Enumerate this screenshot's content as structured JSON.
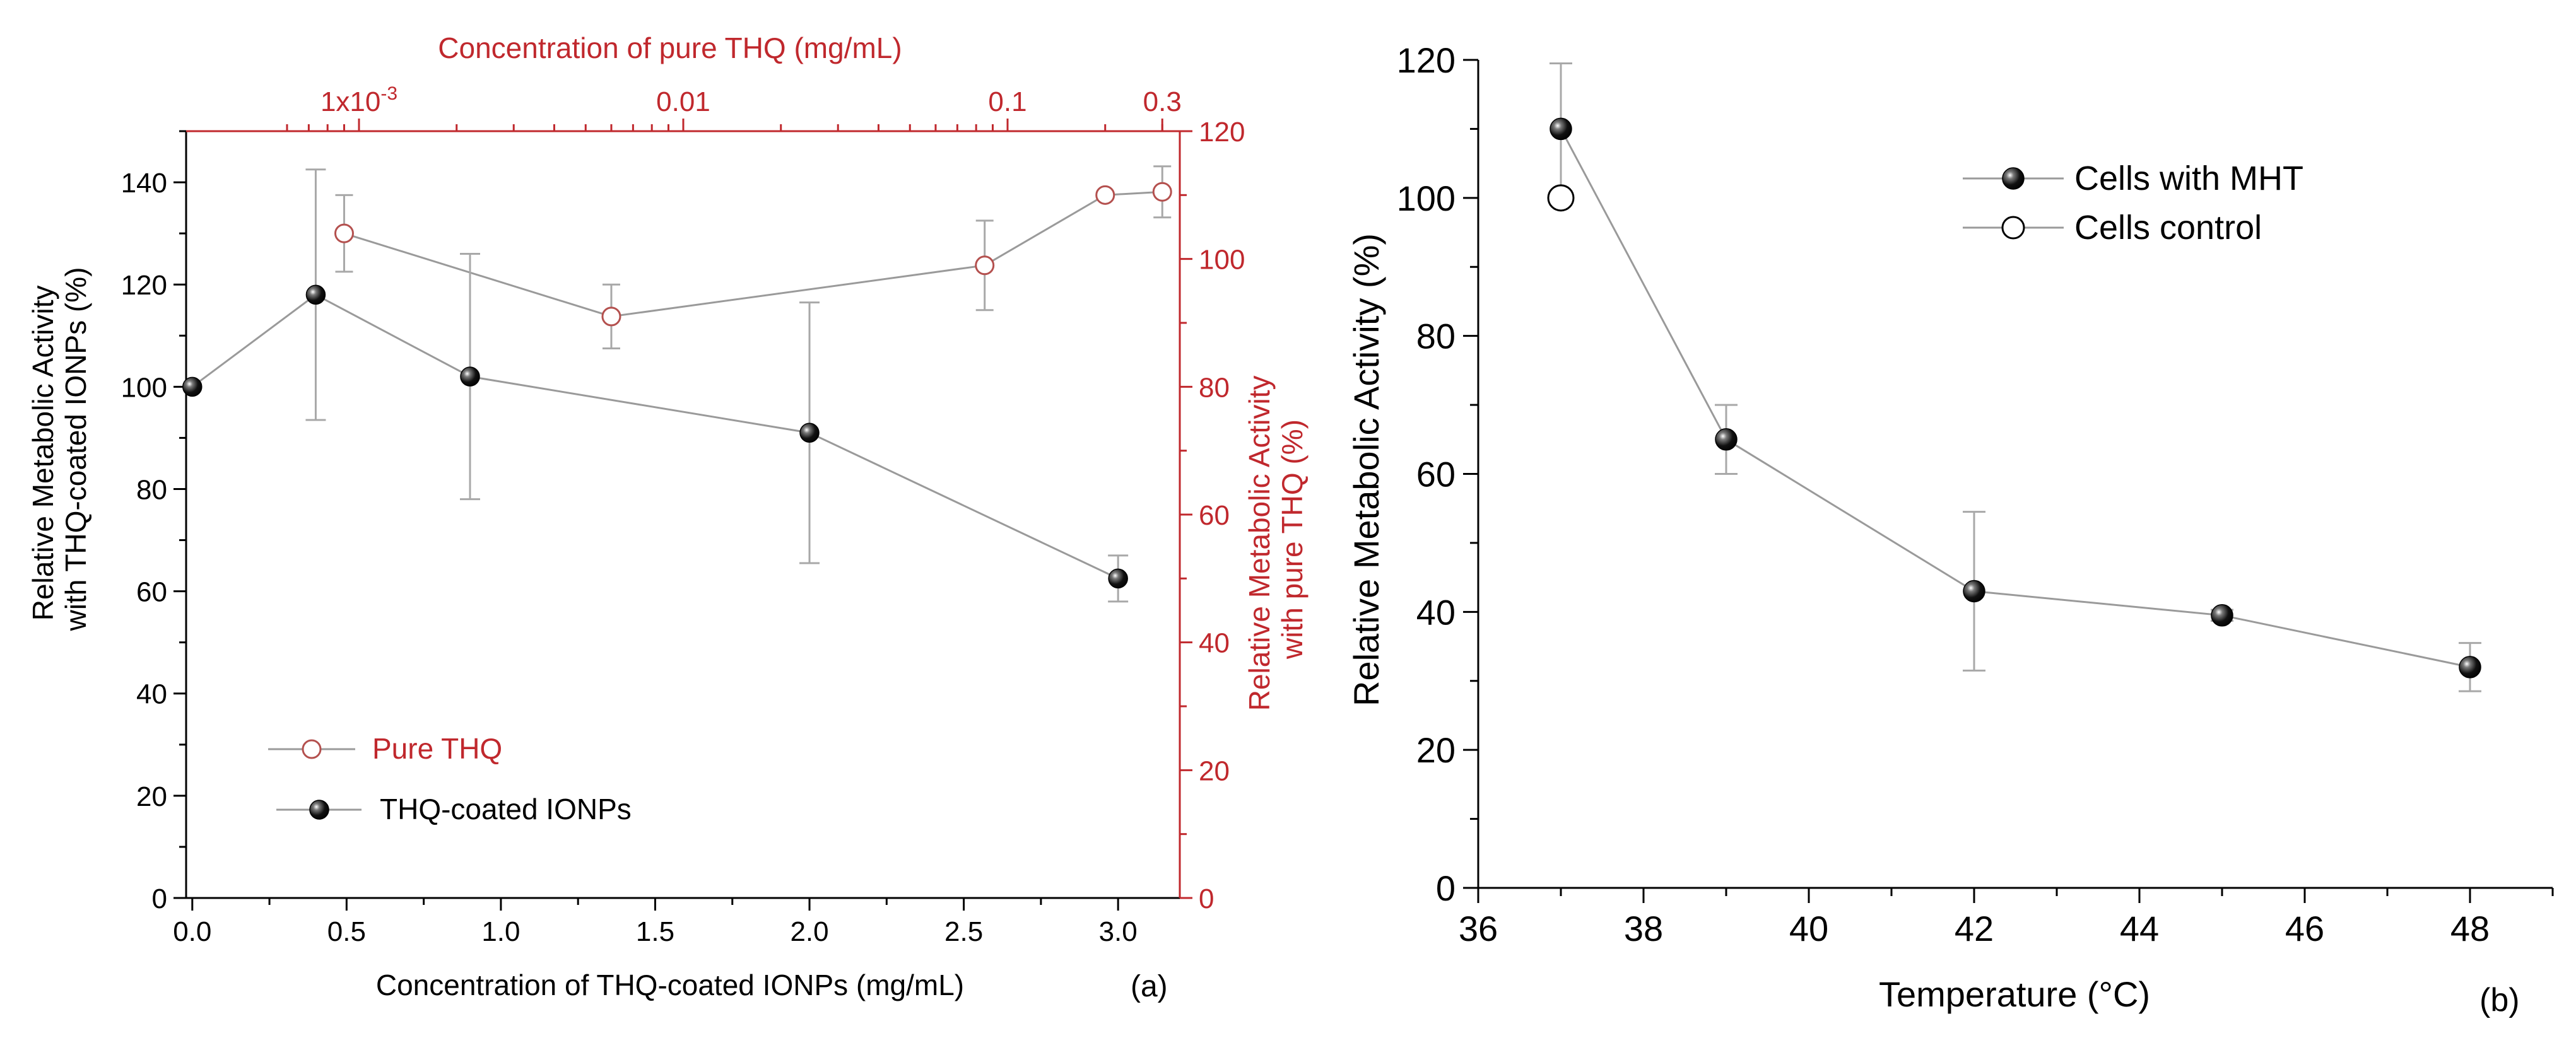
{
  "colors": {
    "axis": "#000000",
    "red_axis": "#c0282d",
    "line": "#9a9a9a",
    "errorbar": "#a8a8a8",
    "open_marker": "#b4504e"
  },
  "chart_data": [
    {
      "type": "line",
      "panel_label": "(a)",
      "xlabel": "Concentration of THQ-coated IONPs (mg/mL)",
      "ylabel_line1": "Relative Metabolic Activity",
      "ylabel_line2": "with THQ-coated IONPs (%)",
      "xlim": [
        -0.02,
        3.2
      ],
      "ylim": [
        0,
        150
      ],
      "xticks": [
        0.0,
        0.5,
        1.0,
        1.5,
        2.0,
        2.5,
        3.0
      ],
      "xtick_labels": [
        "0.0",
        "0.5",
        "1.0",
        "1.5",
        "2.0",
        "2.5",
        "3.0"
      ],
      "yticks": [
        0,
        20,
        40,
        60,
        80,
        100,
        120,
        140
      ],
      "ytick_labels": [
        "0",
        "20",
        "40",
        "60",
        "80",
        "100",
        "120",
        "140"
      ],
      "top_axis": {
        "label": "Concentration of pure THQ (mg/mL)",
        "scale": "log",
        "tick_labels": [
          {
            "value": 0.001,
            "base": "1x10",
            "exp": "-3"
          },
          {
            "value": 0.01,
            "base": "0.01",
            "exp": ""
          },
          {
            "value": 0.1,
            "base": "0.1",
            "exp": ""
          },
          {
            "value": 0.3,
            "base": "0.3",
            "exp": ""
          }
        ]
      },
      "right_axis": {
        "ylabel_line1": "Relative Metabolic Activity",
        "ylabel_line2": "with pure THQ (%)",
        "ylim": [
          0,
          120
        ],
        "yticks": [
          0,
          20,
          40,
          60,
          80,
          100,
          120
        ],
        "ytick_labels": [
          "0",
          "20",
          "40",
          "60",
          "80",
          "100",
          "120"
        ]
      },
      "series": [
        {
          "name": "Pure THQ",
          "axis": "top-right",
          "marker": "open-circle",
          "x": [
            0.0009,
            0.006,
            0.085,
            0.2,
            0.3
          ],
          "y": [
            104,
            91,
            99,
            110,
            110.5
          ],
          "err": [
            6,
            5,
            7,
            0,
            4
          ]
        },
        {
          "name": "THQ-coated IONPs",
          "axis": "bottom-left",
          "marker": "filled-circle",
          "x": [
            0.0,
            0.4,
            0.9,
            2.0,
            3.0
          ],
          "y": [
            100,
            118,
            102,
            91,
            62.5
          ],
          "err": [
            0,
            24.5,
            24,
            25.5,
            4.5
          ]
        }
      ],
      "legend": {
        "position": "bottom-left",
        "entries": [
          "Pure THQ",
          "THQ-coated IONPs"
        ]
      }
    },
    {
      "type": "line",
      "panel_label": "(b)",
      "xlabel": "Temperature (°C)",
      "ylabel": "Relative Metabolic Activity (%)",
      "xlim": [
        36,
        49
      ],
      "ylim": [
        0,
        120
      ],
      "xticks": [
        36,
        38,
        40,
        42,
        44,
        46,
        48
      ],
      "xtick_labels": [
        "36",
        "38",
        "40",
        "42",
        "44",
        "46",
        "48"
      ],
      "yticks": [
        0,
        20,
        40,
        60,
        80,
        100,
        120
      ],
      "ytick_labels": [
        "0",
        "20",
        "40",
        "60",
        "80",
        "100",
        "120"
      ],
      "series": [
        {
          "name": "Cells with MHT",
          "marker": "filled-circle",
          "x": [
            37,
            39,
            42,
            45,
            48
          ],
          "y": [
            110,
            65,
            43,
            39.5,
            32
          ],
          "err": [
            9.5,
            5,
            11.5,
            0.8,
            3.5
          ]
        },
        {
          "name": "Cells control",
          "marker": "open-circle",
          "x": [
            37
          ],
          "y": [
            100
          ],
          "err": [
            0
          ]
        }
      ],
      "legend": {
        "position": "top-right",
        "entries": [
          "Cells with MHT",
          "Cells control"
        ]
      }
    }
  ]
}
